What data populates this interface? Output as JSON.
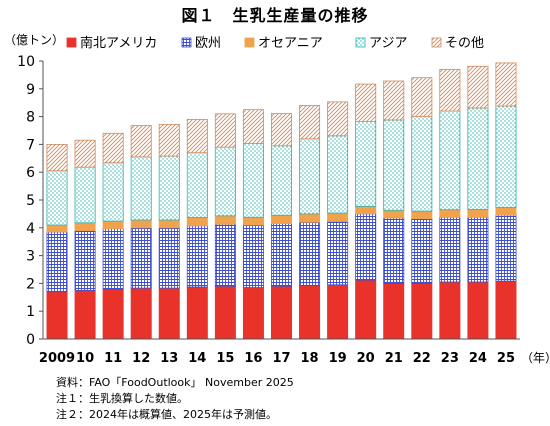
{
  "title": "図１　生乳生産量の推移",
  "chart_data": {
    "type": "bar",
    "stacked": true,
    "ylabel": "（億トン）",
    "xlabel": "（年）",
    "ylim": [
      0,
      10
    ],
    "yticks": [
      0,
      1,
      2,
      3,
      4,
      5,
      6,
      7,
      8,
      9,
      10
    ],
    "grid": false,
    "legend_position": "top",
    "categories": [
      "2009",
      "10",
      "11",
      "12",
      "13",
      "14",
      "15",
      "16",
      "17",
      "18",
      "19",
      "20",
      "21",
      "22",
      "23",
      "24",
      "25"
    ],
    "series": [
      {
        "name": "南北アメリカ",
        "color": "#e8322a",
        "pattern": "solid",
        "values": [
          1.7,
          1.75,
          1.8,
          1.83,
          1.83,
          1.87,
          1.9,
          1.85,
          1.9,
          1.92,
          1.95,
          2.12,
          2.0,
          2.0,
          2.05,
          2.05,
          2.08
        ]
      },
      {
        "name": "欧州",
        "color": "#3d4fd0",
        "pattern": "grid",
        "values": [
          2.15,
          2.15,
          2.17,
          2.17,
          2.17,
          2.2,
          2.23,
          2.25,
          2.25,
          2.28,
          2.28,
          2.38,
          2.35,
          2.33,
          2.33,
          2.33,
          2.38
        ]
      },
      {
        "name": "オセアニア",
        "color": "#f0a24c",
        "pattern": "solid",
        "values": [
          0.25,
          0.28,
          0.27,
          0.28,
          0.28,
          0.3,
          0.3,
          0.28,
          0.3,
          0.3,
          0.3,
          0.27,
          0.28,
          0.27,
          0.27,
          0.28,
          0.27
        ]
      },
      {
        "name": "アジア",
        "color": "#2fb3b3",
        "pattern": "dots",
        "values": [
          1.95,
          2.0,
          2.1,
          2.27,
          2.3,
          2.33,
          2.47,
          2.65,
          2.5,
          2.7,
          2.78,
          3.05,
          3.25,
          3.4,
          3.55,
          3.65,
          3.65
        ]
      },
      {
        "name": "その他",
        "color": "#d08a5c",
        "pattern": "hatch",
        "values": [
          0.95,
          0.97,
          1.06,
          1.13,
          1.14,
          1.2,
          1.2,
          1.22,
          1.16,
          1.2,
          1.22,
          1.35,
          1.4,
          1.4,
          1.5,
          1.5,
          1.55
        ]
      }
    ]
  },
  "notes": [
    "資料：FAO「FoodOutlook」 November 2025",
    "注１：生乳換算した数値。",
    "注２：2024年は概算値、2025年は予測値。"
  ]
}
